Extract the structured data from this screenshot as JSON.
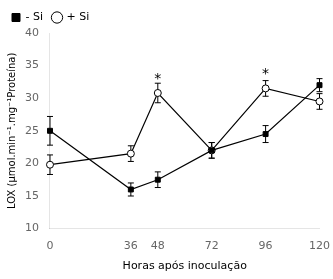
{
  "chart_data": {
    "type": "line",
    "x": [
      0,
      36,
      48,
      72,
      96,
      120
    ],
    "series": [
      {
        "name": "- Si",
        "color": "#000000",
        "marker": "square",
        "line_style": "solid",
        "values": [
          25.0,
          16.0,
          17.5,
          22.0,
          24.5,
          32.0
        ],
        "yerr": [
          2.2,
          1.0,
          1.2,
          1.2,
          1.3,
          1.0
        ]
      },
      {
        "name": "+ Si",
        "color": "#000000",
        "marker": "open_circle",
        "line_style": "solid",
        "values": [
          19.8,
          21.5,
          30.8,
          22.0,
          31.5,
          29.5
        ],
        "yerr": [
          1.5,
          1.2,
          1.5,
          1.2,
          1.2,
          1.2
        ]
      }
    ],
    "annotations": [
      {
        "text": "*",
        "x": 48,
        "y": 32.5
      },
      {
        "text": "*",
        "x": 96,
        "y": 33.2
      }
    ],
    "xlabel": "Horas após inoculação",
    "ylabel": "LOX (µmol.min⁻¹.mg⁻¹Proteína)",
    "xlim": [
      0,
      120
    ],
    "xticks": [
      0,
      36,
      48,
      72,
      96,
      120
    ],
    "ylim": [
      10,
      40
    ],
    "yticks": [
      10,
      15,
      20,
      25,
      30,
      35,
      40
    ],
    "grid": false,
    "legend": "upper left"
  }
}
